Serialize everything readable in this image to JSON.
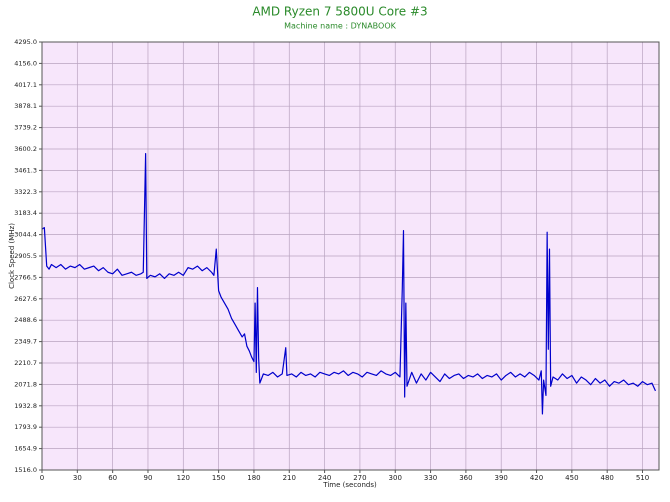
{
  "chart_data": {
    "type": "line",
    "title": "AMD Ryzen 7 5800U Core #3",
    "subtitle": "Machine name : DYNABOOK",
    "xlabel": "Time (seconds)",
    "ylabel": "Clock Speed (MHz)",
    "color": "#0000cc",
    "grid": true,
    "xlim": [
      0,
      524
    ],
    "ylim": [
      1516,
      4295
    ],
    "xticks": [
      0,
      30,
      60,
      90,
      120,
      150,
      180,
      210,
      240,
      270,
      300,
      330,
      360,
      390,
      420,
      450,
      480,
      510
    ],
    "yticks": [
      {
        "value": 1516,
        "label": "1516.0"
      },
      1654.9,
      1793.9,
      1932.8,
      2071.8,
      2210.7,
      2349.7,
      2488.6,
      2627.6,
      2766.5,
      2905.5,
      3044.4,
      3183.4,
      3322.3,
      3461.3,
      3600.2,
      3739.2,
      3878.1,
      4017.1,
      {
        "value": 4156,
        "label": "4156.0"
      },
      {
        "value": 4295,
        "label": "4295.0"
      }
    ],
    "x": [
      0,
      2,
      4,
      6,
      8,
      12,
      16,
      20,
      24,
      28,
      32,
      36,
      40,
      44,
      48,
      52,
      56,
      60,
      64,
      68,
      72,
      76,
      80,
      84,
      86,
      88,
      89,
      92,
      96,
      100,
      104,
      108,
      112,
      116,
      120,
      124,
      128,
      132,
      136,
      140,
      144,
      146,
      148,
      150,
      152,
      155,
      158,
      161,
      164,
      167,
      170,
      172,
      174,
      176,
      178,
      180,
      181,
      182,
      183,
      184,
      185,
      188,
      192,
      196,
      200,
      204,
      207,
      208,
      212,
      216,
      220,
      224,
      228,
      232,
      236,
      240,
      244,
      248,
      252,
      256,
      260,
      264,
      268,
      272,
      276,
      280,
      284,
      288,
      292,
      296,
      300,
      304,
      306,
      307,
      308,
      309,
      310,
      314,
      318,
      322,
      326,
      330,
      334,
      338,
      342,
      346,
      350,
      354,
      358,
      362,
      366,
      370,
      374,
      378,
      382,
      386,
      390,
      394,
      398,
      402,
      406,
      410,
      414,
      418,
      422,
      424,
      425,
      426,
      428,
      429,
      430,
      431,
      432,
      434,
      438,
      442,
      446,
      450,
      454,
      458,
      462,
      466,
      470,
      474,
      478,
      482,
      486,
      490,
      494,
      498,
      502,
      506,
      510,
      514,
      518,
      521
    ],
    "values": [
      3080,
      3090,
      2840,
      2820,
      2850,
      2830,
      2850,
      2820,
      2840,
      2830,
      2850,
      2820,
      2830,
      2840,
      2810,
      2830,
      2800,
      2790,
      2820,
      2780,
      2790,
      2800,
      2780,
      2790,
      2800,
      3570,
      2760,
      2780,
      2770,
      2790,
      2760,
      2790,
      2780,
      2800,
      2780,
      2830,
      2820,
      2840,
      2810,
      2830,
      2800,
      2780,
      2950,
      2680,
      2640,
      2600,
      2560,
      2500,
      2460,
      2420,
      2380,
      2400,
      2320,
      2290,
      2250,
      2220,
      2600,
      2150,
      2700,
      2240,
      2080,
      2140,
      2130,
      2150,
      2120,
      2140,
      2310,
      2130,
      2140,
      2120,
      2150,
      2130,
      2140,
      2120,
      2150,
      2140,
      2130,
      2150,
      2140,
      2160,
      2130,
      2150,
      2140,
      2120,
      2150,
      2140,
      2130,
      2160,
      2140,
      2130,
      2150,
      2120,
      2700,
      3070,
      1990,
      2600,
      2060,
      2150,
      2080,
      2140,
      2100,
      2150,
      2120,
      2090,
      2140,
      2110,
      2130,
      2140,
      2110,
      2130,
      2120,
      2140,
      2110,
      2130,
      2120,
      2140,
      2100,
      2130,
      2150,
      2120,
      2140,
      2120,
      2150,
      2130,
      2100,
      2160,
      1880,
      2100,
      2000,
      3060,
      2300,
      2950,
      2060,
      2120,
      2100,
      2140,
      2110,
      2130,
      2080,
      2120,
      2100,
      2070,
      2110,
      2080,
      2100,
      2060,
      2090,
      2080,
      2100,
      2070,
      2080,
      2060,
      2090,
      2070,
      2080,
      2030
    ]
  }
}
